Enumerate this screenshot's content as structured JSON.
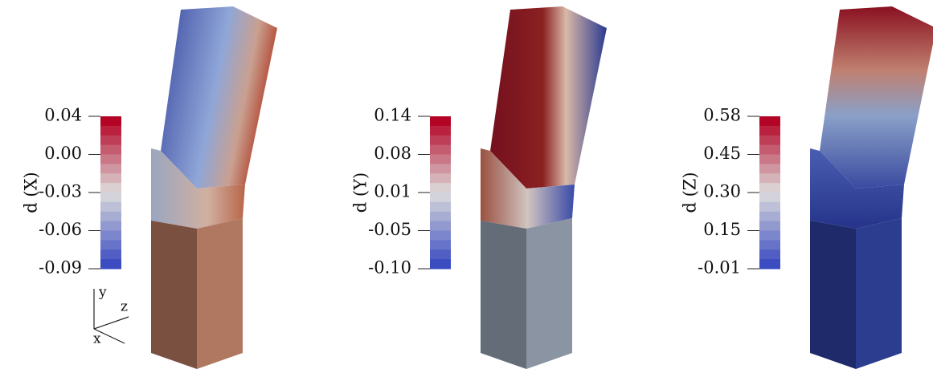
{
  "panels": [
    {
      "label": "d (X)",
      "ticks": [
        "0.04",
        "0.00",
        "-0.03",
        "-0.06",
        "-0.09"
      ]
    },
    {
      "label": "d (Y)",
      "ticks": [
        "0.14",
        "0.08",
        "0.01",
        "-0.05",
        "-0.10"
      ]
    },
    {
      "label": "d (Z)",
      "ticks": [
        "0.58",
        "0.45",
        "0.30",
        "0.15",
        "-0.01"
      ]
    }
  ],
  "axes": {
    "y": "y",
    "z": "z",
    "x": "x"
  }
}
